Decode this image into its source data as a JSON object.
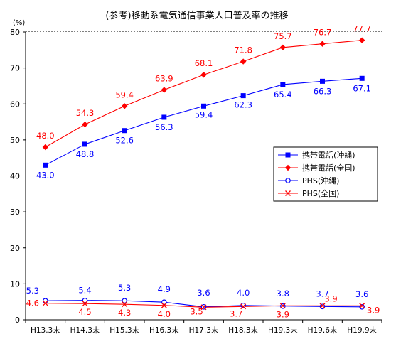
{
  "chart_data": {
    "type": "line",
    "title": "(参考)移動系電気通信事業人口普及率の推移",
    "ylabel": "(%)",
    "xlabel": "",
    "ylim": [
      0,
      80
    ],
    "yticks": [
      0,
      10,
      20,
      30,
      40,
      50,
      60,
      70,
      80
    ],
    "grid": "horizontal dashed",
    "legend_position": "right-middle",
    "categories": [
      "H13.3末",
      "H14.3末",
      "H15.3末",
      "H16.3末",
      "H17.3末",
      "H18.3末",
      "H19.3末",
      "H19.6末",
      "H19.9末"
    ],
    "series": [
      {
        "name": "携帯電話(沖縄)",
        "color": "#0000ff",
        "marker": "square",
        "label_color": "#0000ff",
        "values": [
          43.0,
          48.8,
          52.6,
          56.3,
          59.4,
          62.3,
          65.4,
          66.3,
          67.1
        ],
        "labels": [
          "43.0",
          "48.8",
          "52.6",
          "56.3",
          "59.4",
          "62.3",
          "65.4",
          "66.3",
          "67.1"
        ]
      },
      {
        "name": "携帯電話(全国)",
        "color": "#ff0000",
        "marker": "diamond",
        "label_color": "#ff0000",
        "values": [
          48.0,
          54.3,
          59.4,
          63.9,
          68.1,
          71.8,
          75.7,
          76.7,
          77.7
        ],
        "labels": [
          "48.0",
          "54.3",
          "59.4",
          "63.9",
          "68.1",
          "71.8",
          "75.7",
          "76.7",
          "77.7"
        ]
      },
      {
        "name": "PHS(沖縄)",
        "color": "#0000ff",
        "marker": "circle",
        "label_color": "#0000ff",
        "values": [
          5.3,
          5.4,
          5.3,
          4.9,
          3.6,
          4.0,
          3.8,
          3.7,
          3.6
        ],
        "labels": [
          "5.3",
          "5.4",
          "5.3",
          "4.9",
          "3.6",
          "4.0",
          "3.8",
          "3.7",
          "3.6"
        ]
      },
      {
        "name": "PHS(全国)",
        "color": "#ff0000",
        "marker": "x",
        "label_color": "#ff0000",
        "values": [
          4.6,
          4.5,
          4.3,
          4.0,
          3.5,
          3.7,
          3.9,
          3.9,
          3.9
        ],
        "labels": [
          "4.6",
          "4.5",
          "4.3",
          "4.0",
          "3.5",
          "3.7",
          "3.9",
          "3.9",
          "3.9"
        ]
      }
    ]
  }
}
